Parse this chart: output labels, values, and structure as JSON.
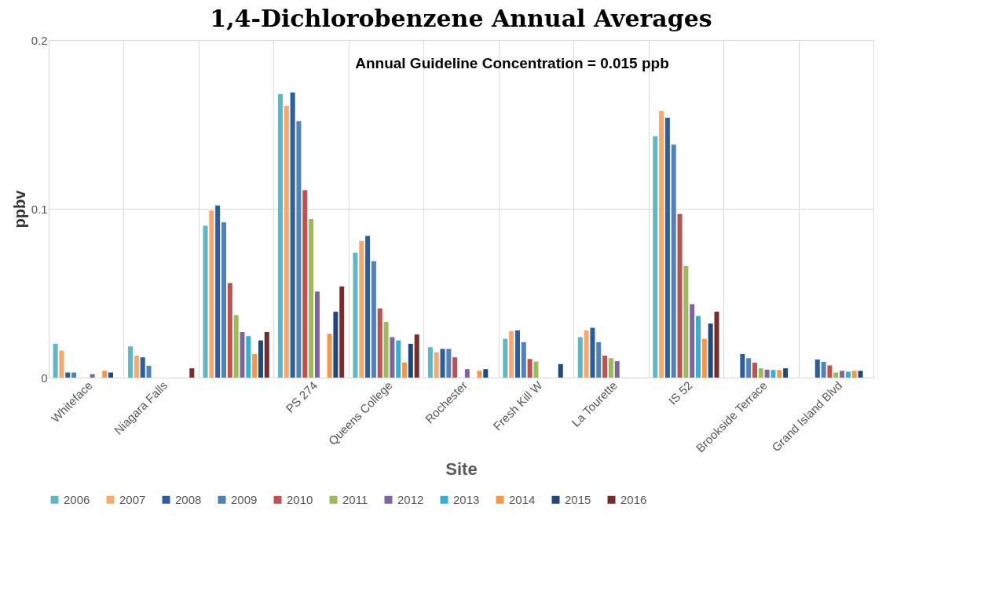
{
  "chart_data": {
    "type": "bar",
    "title": "1,4-Dichlorobenzene Annual Averages",
    "xlabel": "Site",
    "ylabel": "ppbv",
    "annotations": [
      "Annual  Guideline  Concentration = 0.015 ppb"
    ],
    "categories": [
      "Whiteface",
      "Niagara Falls",
      null,
      "PS 274",
      "Queens College",
      "Rochester",
      "Fresh Kill W",
      "La Tourette",
      "IS 52",
      "Brookside Terrace",
      "Grand Island Blvd"
    ],
    "series": [
      {
        "name": "2006",
        "color": "#5fb7c4",
        "values": [
          0.02,
          0.0185,
          0.09,
          0.168,
          0.074,
          0.018,
          0.023,
          0.024,
          0.143,
          null,
          null
        ]
      },
      {
        "name": "2007",
        "color": "#f7a86a",
        "values": [
          0.016,
          0.013,
          0.099,
          0.161,
          0.081,
          0.015,
          0.0275,
          0.028,
          0.158,
          null,
          null
        ]
      },
      {
        "name": "2008",
        "color": "#2c5d9e",
        "values": [
          0.003,
          0.012,
          0.102,
          0.169,
          0.084,
          0.017,
          0.028,
          0.0295,
          0.154,
          0.014,
          0.0107
        ]
      },
      {
        "name": "2009",
        "color": "#4f81bd",
        "values": [
          0.003,
          0.007,
          0.092,
          0.152,
          0.069,
          0.017,
          0.021,
          0.021,
          0.138,
          0.0115,
          0.0093
        ]
      },
      {
        "name": "2010",
        "color": "#c0504d",
        "values": [
          null,
          null,
          0.056,
          0.111,
          0.041,
          0.012,
          0.011,
          0.013,
          0.097,
          0.0088,
          0.0072
        ]
      },
      {
        "name": "2011",
        "color": "#9bbb59",
        "values": [
          null,
          null,
          0.037,
          0.094,
          0.033,
          null,
          0.0095,
          0.0115,
          0.066,
          0.0055,
          0.003
        ]
      },
      {
        "name": "2012",
        "color": "#8064a2",
        "values": [
          0.002,
          null,
          0.027,
          0.051,
          0.024,
          0.005,
          null,
          0.0097,
          0.0435,
          0.0047,
          0.004
        ]
      },
      {
        "name": "2013",
        "color": "#35b0d4",
        "values": [
          null,
          null,
          0.0245,
          null,
          0.022,
          null,
          null,
          null,
          0.0365,
          0.0045,
          0.0035
        ]
      },
      {
        "name": "2014",
        "color": "#f79646",
        "values": [
          0.004,
          null,
          0.014,
          0.026,
          0.009,
          0.004,
          null,
          null,
          0.023,
          0.0045,
          0.004
        ]
      },
      {
        "name": "2015",
        "color": "#1f497d",
        "values": [
          0.003,
          null,
          0.022,
          0.039,
          0.02,
          0.005,
          0.008,
          null,
          0.032,
          0.0055,
          0.004
        ]
      },
      {
        "name": "2016",
        "color": "#772c2a",
        "values": [
          null,
          0.0055,
          0.027,
          0.054,
          0.0255,
          null,
          null,
          null,
          0.039,
          null,
          null
        ]
      }
    ],
    "ylim": [
      0,
      0.2
    ],
    "yticks": [
      0,
      0.1,
      0.2
    ],
    "grid": true,
    "legend": "bottom"
  }
}
